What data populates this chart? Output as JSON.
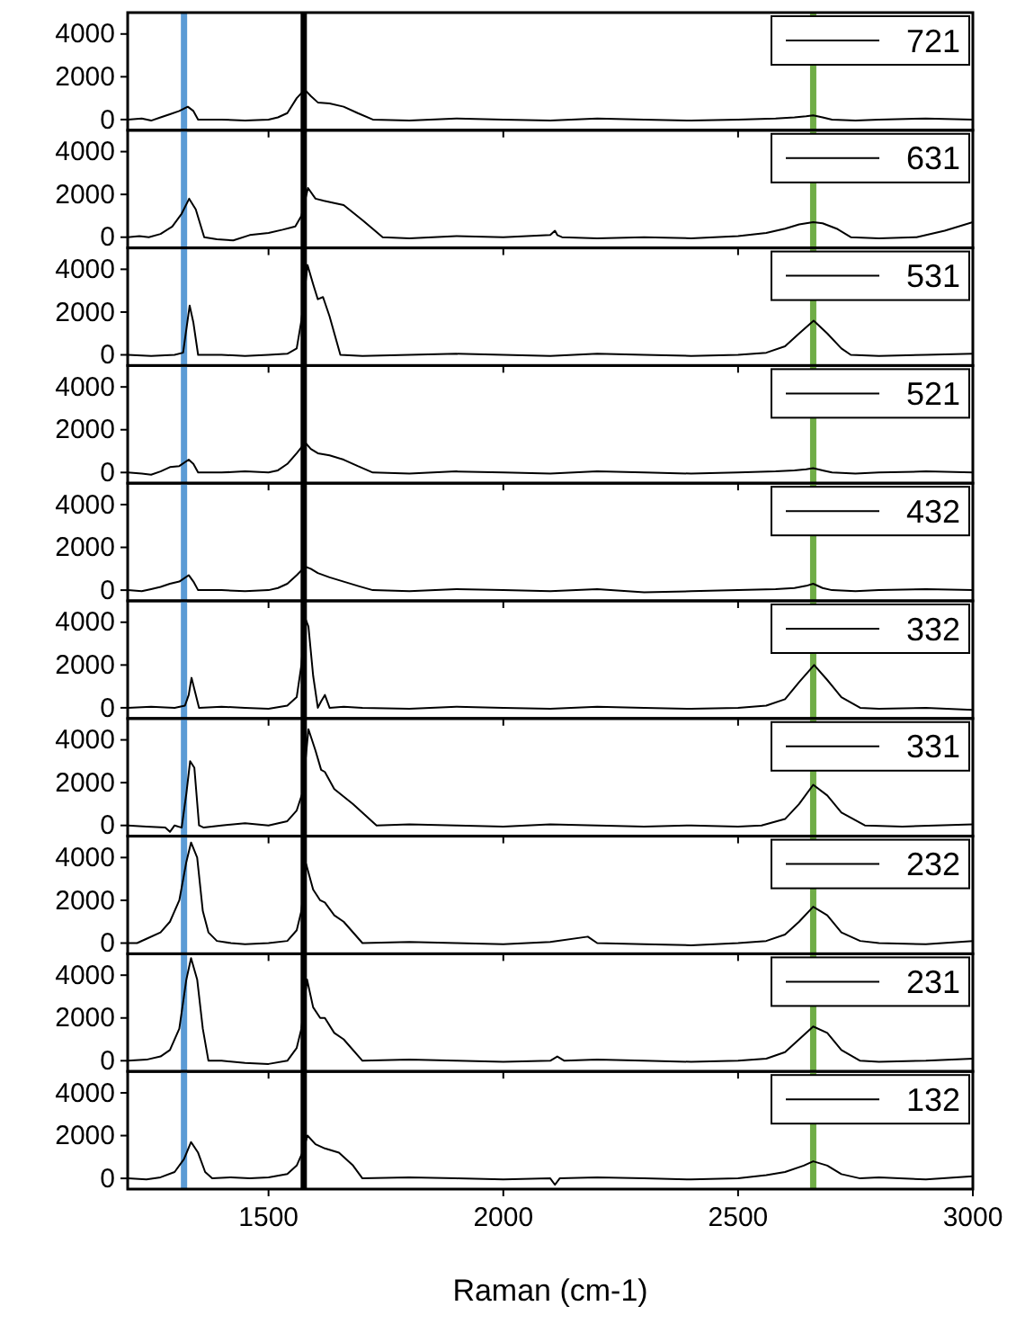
{
  "chart_data": [
    {
      "type": "line",
      "xlim": [
        1200,
        3000
      ],
      "xticks": [
        1500,
        2000,
        2500,
        3000
      ],
      "ylim": [
        -500,
        5000
      ],
      "yticks": [
        0,
        2000,
        4000
      ],
      "tick_labels": "y",
      "legend": "top right",
      "ref_lines": [
        {
          "axis": "x",
          "value": 1320,
          "color": "#5b9bd5"
        },
        {
          "axis": "x",
          "value": 1575,
          "color": "#000000"
        },
        {
          "axis": "x",
          "value": 2660,
          "color": "#70ad47"
        }
      ],
      "series": [
        {
          "name": "721",
          "color": "#000000",
          "x": [
            1200,
            1230,
            1250,
            1270,
            1290,
            1310,
            1328,
            1340,
            1350,
            1400,
            1450,
            1500,
            1520,
            1540,
            1560,
            1577,
            1590,
            1605,
            1630,
            1660,
            1690,
            1722,
            1800,
            1900,
            2000,
            2100,
            2200,
            2300,
            2400,
            2500,
            2580,
            2620,
            2645,
            2660,
            2680,
            2700,
            2750,
            2800,
            2900,
            3000
          ],
          "values": [
            0,
            50,
            -50,
            100,
            250,
            400,
            600,
            400,
            0,
            0,
            -50,
            0,
            100,
            300,
            1000,
            1400,
            1100,
            800,
            750,
            600,
            300,
            0,
            -50,
            50,
            0,
            -50,
            50,
            0,
            -50,
            0,
            50,
            100,
            150,
            200,
            100,
            0,
            -50,
            0,
            50,
            0
          ]
        }
      ]
    },
    {
      "type": "line",
      "xlim": [
        1200,
        3000
      ],
      "xticks": [
        1500,
        2000,
        2500,
        3000
      ],
      "ylim": [
        -500,
        5000
      ],
      "yticks": [
        0,
        2000,
        4000
      ],
      "tick_labels": "y",
      "legend": "top right",
      "ref_lines": [
        {
          "axis": "x",
          "value": 1320,
          "color": "#5b9bd5"
        },
        {
          "axis": "x",
          "value": 1575,
          "color": "#000000"
        },
        {
          "axis": "x",
          "value": 2660,
          "color": "#70ad47"
        }
      ],
      "series": [
        {
          "name": "631",
          "color": "#000000",
          "x": [
            1200,
            1225,
            1245,
            1270,
            1295,
            1315,
            1331,
            1345,
            1363,
            1390,
            1425,
            1460,
            1500,
            1530,
            1557,
            1570,
            1584,
            1600,
            1618,
            1640,
            1660,
            1700,
            1743,
            1800,
            1900,
            2000,
            2100,
            2110,
            2115,
            2125,
            2200,
            2300,
            2400,
            2500,
            2560,
            2600,
            2630,
            2660,
            2680,
            2710,
            2740,
            2800,
            2880,
            2940,
            3000
          ],
          "values": [
            0,
            50,
            0,
            150,
            500,
            1100,
            1800,
            1300,
            0,
            -100,
            -150,
            100,
            200,
            350,
            500,
            1000,
            2300,
            1800,
            1700,
            1600,
            1500,
            800,
            0,
            -50,
            50,
            0,
            100,
            300,
            100,
            0,
            -50,
            0,
            -50,
            50,
            200,
            400,
            600,
            700,
            650,
            400,
            0,
            -50,
            0,
            300,
            700
          ]
        }
      ]
    },
    {
      "type": "line",
      "xlim": [
        1200,
        3000
      ],
      "xticks": [
        1500,
        2000,
        2500,
        3000
      ],
      "ylim": [
        -500,
        5000
      ],
      "yticks": [
        0,
        2000,
        4000
      ],
      "tick_labels": "y",
      "legend": "top right",
      "ref_lines": [
        {
          "axis": "x",
          "value": 1320,
          "color": "#5b9bd5"
        },
        {
          "axis": "x",
          "value": 1575,
          "color": "#000000"
        },
        {
          "axis": "x",
          "value": 2660,
          "color": "#70ad47"
        }
      ],
      "series": [
        {
          "name": "531",
          "color": "#000000",
          "x": [
            1200,
            1250,
            1300,
            1318,
            1325,
            1332,
            1340,
            1350,
            1400,
            1450,
            1500,
            1540,
            1560,
            1570,
            1583,
            1595,
            1605,
            1616,
            1630,
            1653,
            1700,
            1800,
            1900,
            2000,
            2100,
            2200,
            2300,
            2400,
            2500,
            2560,
            2600,
            2630,
            2661,
            2690,
            2720,
            2740,
            2800,
            2900,
            3000
          ],
          "values": [
            0,
            -50,
            0,
            100,
            1200,
            2300,
            1500,
            0,
            0,
            -50,
            0,
            50,
            300,
            1600,
            4200,
            3300,
            2600,
            2700,
            1800,
            0,
            -50,
            0,
            50,
            0,
            -50,
            50,
            0,
            -50,
            0,
            100,
            400,
            1000,
            1600,
            1000,
            300,
            0,
            -50,
            0,
            50
          ]
        }
      ]
    },
    {
      "type": "line",
      "xlim": [
        1200,
        3000
      ],
      "xticks": [
        1500,
        2000,
        2500,
        3000
      ],
      "ylim": [
        -500,
        5000
      ],
      "yticks": [
        0,
        2000,
        4000
      ],
      "tick_labels": "y",
      "legend": "top right",
      "ref_lines": [
        {
          "axis": "x",
          "value": 1320,
          "color": "#5b9bd5"
        },
        {
          "axis": "x",
          "value": 1575,
          "color": "#000000"
        },
        {
          "axis": "x",
          "value": 2660,
          "color": "#70ad47"
        }
      ],
      "series": [
        {
          "name": "521",
          "color": "#000000",
          "x": [
            1200,
            1230,
            1250,
            1270,
            1290,
            1310,
            1330,
            1340,
            1350,
            1400,
            1450,
            1500,
            1520,
            1540,
            1560,
            1578,
            1590,
            1605,
            1630,
            1660,
            1690,
            1722,
            1800,
            1900,
            2000,
            2100,
            2200,
            2300,
            2400,
            2500,
            2580,
            2620,
            2645,
            2660,
            2680,
            2700,
            2750,
            2800,
            2900,
            3000
          ],
          "values": [
            0,
            -50,
            -100,
            50,
            250,
            300,
            600,
            400,
            0,
            0,
            50,
            0,
            100,
            400,
            900,
            1400,
            1100,
            900,
            800,
            600,
            300,
            0,
            -50,
            50,
            0,
            -50,
            50,
            0,
            -50,
            0,
            50,
            100,
            150,
            200,
            100,
            0,
            -50,
            0,
            50,
            0
          ]
        }
      ]
    },
    {
      "type": "line",
      "xlim": [
        1200,
        3000
      ],
      "xticks": [
        1500,
        2000,
        2500,
        3000
      ],
      "ylim": [
        -500,
        5000
      ],
      "yticks": [
        0,
        2000,
        4000
      ],
      "tick_labels": "y",
      "legend": "top right",
      "ref_lines": [
        {
          "axis": "x",
          "value": 1320,
          "color": "#5b9bd5"
        },
        {
          "axis": "x",
          "value": 1575,
          "color": "#000000"
        },
        {
          "axis": "x",
          "value": 2660,
          "color": "#70ad47"
        }
      ],
      "series": [
        {
          "name": "432",
          "color": "#000000",
          "x": [
            1200,
            1230,
            1250,
            1270,
            1290,
            1310,
            1330,
            1340,
            1350,
            1400,
            1450,
            1500,
            1520,
            1540,
            1560,
            1578,
            1590,
            1605,
            1630,
            1660,
            1690,
            1722,
            1800,
            1900,
            2000,
            2100,
            2200,
            2300,
            2400,
            2500,
            2580,
            2620,
            2645,
            2660,
            2680,
            2700,
            2750,
            2800,
            2900,
            3000
          ],
          "values": [
            0,
            -50,
            50,
            150,
            300,
            400,
            700,
            400,
            0,
            0,
            -50,
            0,
            100,
            300,
            700,
            1100,
            1000,
            800,
            600,
            400,
            200,
            0,
            -50,
            50,
            0,
            -50,
            50,
            -100,
            -50,
            0,
            50,
            100,
            200,
            300,
            100,
            0,
            -50,
            0,
            50,
            0
          ]
        }
      ]
    },
    {
      "type": "line",
      "xlim": [
        1200,
        3000
      ],
      "xticks": [
        1500,
        2000,
        2500,
        3000
      ],
      "ylim": [
        -500,
        5000
      ],
      "yticks": [
        0,
        2000,
        4000
      ],
      "tick_labels": "y",
      "legend": "top right",
      "ref_lines": [
        {
          "axis": "x",
          "value": 1320,
          "color": "#5b9bd5"
        },
        {
          "axis": "x",
          "value": 1575,
          "color": "#000000"
        },
        {
          "axis": "x",
          "value": 2660,
          "color": "#70ad47"
        }
      ],
      "series": [
        {
          "name": "332",
          "color": "#000000",
          "x": [
            1200,
            1250,
            1300,
            1322,
            1330,
            1336,
            1344,
            1352,
            1400,
            1450,
            1500,
            1540,
            1560,
            1570,
            1578,
            1585,
            1595,
            1605,
            1612,
            1620,
            1630,
            1660,
            1700,
            1800,
            1900,
            2000,
            2100,
            2200,
            2300,
            2400,
            2500,
            2560,
            2600,
            2630,
            2662,
            2690,
            2720,
            2760,
            2800,
            2900,
            3000
          ],
          "values": [
            0,
            50,
            0,
            100,
            600,
            1400,
            700,
            0,
            50,
            0,
            -50,
            100,
            500,
            2000,
            4200,
            3800,
            1500,
            0,
            300,
            600,
            0,
            50,
            0,
            -50,
            50,
            0,
            -50,
            50,
            0,
            -50,
            0,
            100,
            400,
            1200,
            2000,
            1300,
            500,
            0,
            -50,
            0,
            -100
          ]
        }
      ]
    },
    {
      "type": "line",
      "xlim": [
        1200,
        3000
      ],
      "xticks": [
        1500,
        2000,
        2500,
        3000
      ],
      "ylim": [
        -500,
        5000
      ],
      "yticks": [
        0,
        2000,
        4000
      ],
      "tick_labels": "y",
      "legend": "top right",
      "ref_lines": [
        {
          "axis": "x",
          "value": 1320,
          "color": "#5b9bd5"
        },
        {
          "axis": "x",
          "value": 1575,
          "color": "#000000"
        },
        {
          "axis": "x",
          "value": 2660,
          "color": "#70ad47"
        }
      ],
      "series": [
        {
          "name": "331",
          "color": "#000000",
          "x": [
            1200,
            1240,
            1280,
            1290,
            1300,
            1315,
            1325,
            1333,
            1342,
            1352,
            1362,
            1400,
            1450,
            1500,
            1540,
            1560,
            1572,
            1585,
            1600,
            1612,
            1620,
            1640,
            1680,
            1730,
            1800,
            1900,
            2000,
            2100,
            2200,
            2300,
            2400,
            2500,
            2550,
            2600,
            2630,
            2660,
            2690,
            2720,
            2770,
            2850,
            3000
          ],
          "values": [
            0,
            -50,
            -100,
            -300,
            0,
            -100,
            1500,
            3000,
            2700,
            0,
            -100,
            0,
            100,
            0,
            200,
            700,
            1500,
            4500,
            3500,
            2600,
            2500,
            1700,
            1000,
            0,
            50,
            0,
            -50,
            50,
            0,
            -50,
            0,
            -50,
            0,
            300,
            1000,
            1900,
            1400,
            600,
            0,
            -50,
            50
          ]
        }
      ]
    },
    {
      "type": "line",
      "xlim": [
        1200,
        3000
      ],
      "xticks": [
        1500,
        2000,
        2500,
        3000
      ],
      "ylim": [
        -500,
        5000
      ],
      "yticks": [
        0,
        2000,
        4000
      ],
      "tick_labels": "y",
      "legend": "top right",
      "ref_lines": [
        {
          "axis": "x",
          "value": 1320,
          "color": "#5b9bd5"
        },
        {
          "axis": "x",
          "value": 1575,
          "color": "#000000"
        },
        {
          "axis": "x",
          "value": 2660,
          "color": "#70ad47"
        }
      ],
      "series": [
        {
          "name": "232",
          "color": "#000000",
          "x": [
            1200,
            1220,
            1240,
            1270,
            1290,
            1310,
            1325,
            1335,
            1348,
            1360,
            1372,
            1390,
            1420,
            1450,
            1500,
            1540,
            1560,
            1570,
            1580,
            1595,
            1610,
            1620,
            1640,
            1660,
            1700,
            1800,
            1900,
            2000,
            2100,
            2180,
            2200,
            2300,
            2400,
            2500,
            2560,
            2600,
            2630,
            2660,
            2690,
            2720,
            2760,
            2800,
            2900,
            3000
          ],
          "values": [
            0,
            0,
            200,
            500,
            1000,
            2000,
            3800,
            4700,
            4000,
            1500,
            500,
            100,
            0,
            -50,
            0,
            100,
            600,
            1500,
            3700,
            2500,
            2000,
            1900,
            1300,
            1000,
            0,
            50,
            0,
            -50,
            50,
            300,
            0,
            -50,
            -100,
            0,
            100,
            400,
            1000,
            1700,
            1300,
            500,
            100,
            0,
            -50,
            100
          ]
        }
      ]
    },
    {
      "type": "line",
      "xlim": [
        1200,
        3000
      ],
      "xticks": [
        1500,
        2000,
        2500,
        3000
      ],
      "ylim": [
        -500,
        5000
      ],
      "yticks": [
        0,
        2000,
        4000
      ],
      "tick_labels": "y",
      "legend": "top right",
      "ref_lines": [
        {
          "axis": "x",
          "value": 1320,
          "color": "#5b9bd5"
        },
        {
          "axis": "x",
          "value": 1575,
          "color": "#000000"
        },
        {
          "axis": "x",
          "value": 2660,
          "color": "#70ad47"
        }
      ],
      "series": [
        {
          "name": "231",
          "color": "#000000",
          "x": [
            1200,
            1240,
            1270,
            1290,
            1310,
            1325,
            1335,
            1348,
            1360,
            1372,
            1400,
            1450,
            1500,
            1540,
            1560,
            1570,
            1582,
            1595,
            1610,
            1620,
            1640,
            1660,
            1700,
            1800,
            1900,
            2000,
            2100,
            2115,
            2130,
            2200,
            2300,
            2400,
            2500,
            2560,
            2600,
            2630,
            2660,
            2690,
            2720,
            2760,
            2800,
            2900,
            3000
          ],
          "values": [
            0,
            50,
            200,
            500,
            1500,
            3800,
            4800,
            3800,
            1500,
            0,
            0,
            -100,
            -150,
            0,
            600,
            1500,
            3800,
            2500,
            2000,
            2000,
            1300,
            1000,
            0,
            50,
            0,
            -50,
            0,
            200,
            0,
            50,
            0,
            -50,
            0,
            100,
            400,
            1000,
            1600,
            1300,
            500,
            0,
            -50,
            0,
            100
          ]
        }
      ]
    },
    {
      "type": "line",
      "xlim": [
        1200,
        3000
      ],
      "xticks": [
        1500,
        2000,
        2500,
        3000
      ],
      "ylim": [
        -500,
        5000
      ],
      "yticks": [
        0,
        2000,
        4000
      ],
      "legend": "top right",
      "xlabel": "Raman (cm-1)",
      "ref_lines": [
        {
          "axis": "x",
          "value": 1320,
          "color": "#5b9bd5"
        },
        {
          "axis": "x",
          "value": 1575,
          "color": "#000000"
        },
        {
          "axis": "x",
          "value": 2660,
          "color": "#70ad47"
        }
      ],
      "series": [
        {
          "name": "132",
          "color": "#000000",
          "x": [
            1200,
            1240,
            1270,
            1300,
            1320,
            1335,
            1350,
            1365,
            1380,
            1420,
            1460,
            1500,
            1540,
            1560,
            1572,
            1583,
            1600,
            1620,
            1650,
            1680,
            1700,
            1800,
            1900,
            2000,
            2100,
            2110,
            2120,
            2200,
            2300,
            2400,
            2500,
            2560,
            2600,
            2640,
            2660,
            2690,
            2720,
            2760,
            2800,
            2900,
            3000
          ],
          "values": [
            0,
            -50,
            50,
            300,
            900,
            1700,
            1200,
            300,
            0,
            50,
            0,
            50,
            200,
            600,
            1200,
            2000,
            1600,
            1400,
            1200,
            600,
            0,
            50,
            0,
            -50,
            0,
            -300,
            0,
            50,
            0,
            -50,
            0,
            150,
            300,
            600,
            800,
            600,
            200,
            0,
            50,
            -50,
            100
          ]
        }
      ]
    }
  ]
}
